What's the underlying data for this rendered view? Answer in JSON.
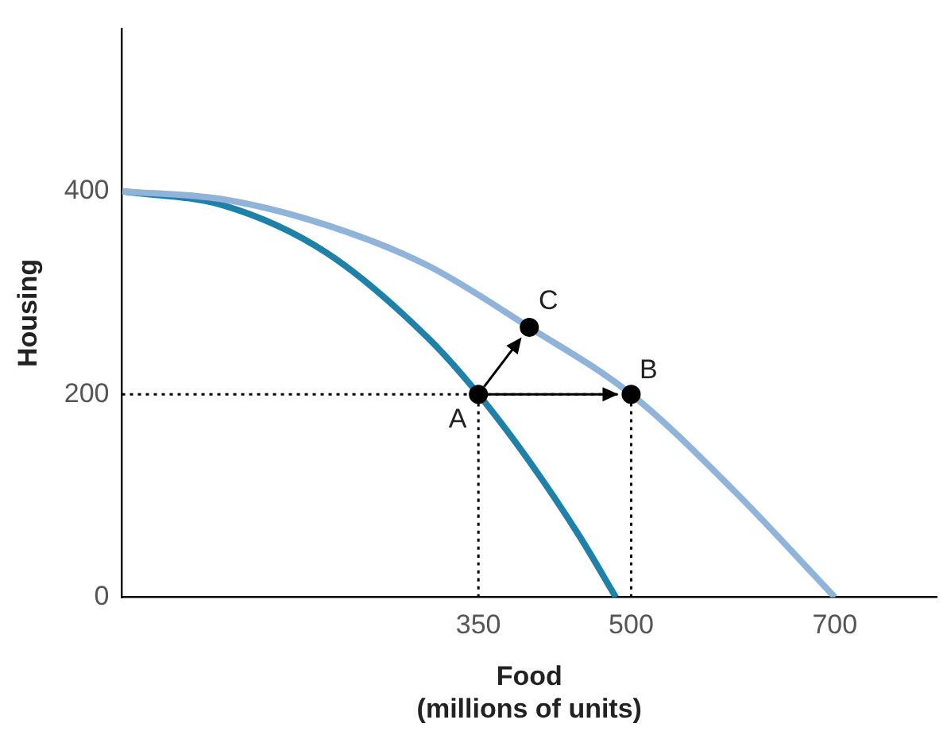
{
  "chart_data": {
    "type": "line",
    "xlabel": "Food\n(millions of units)",
    "ylabel": "Housing",
    "xlim": [
      0,
      800
    ],
    "ylim": [
      0,
      560
    ],
    "xticks": [
      350,
      500,
      700
    ],
    "yticks": [
      0,
      200,
      400
    ],
    "grid": false,
    "legend": false,
    "series": [
      {
        "type": "line",
        "color": "#8fb3d9",
        "marker": "none",
        "line_style": "solid",
        "x": [
          0,
          100,
          200,
          300,
          400,
          500,
          600,
          700
        ],
        "values": [
          400,
          392,
          367,
          327,
          266,
          200,
          106,
          0
        ]
      },
      {
        "type": "line",
        "color": "#1f80a8",
        "marker": "none",
        "line_style": "solid",
        "x": [
          0,
          100,
          200,
          300,
          350,
          400,
          450,
          485
        ],
        "values": [
          400,
          386,
          340,
          256,
          200,
          134,
          59,
          0
        ]
      },
      {
        "type": "line",
        "color": "#000000",
        "marker": "none",
        "line_style": "dotted",
        "x": [
          0,
          500
        ],
        "values": [
          200,
          200
        ]
      },
      {
        "type": "line",
        "color": "#000000",
        "marker": "none",
        "line_style": "dotted",
        "x": [
          350,
          350
        ],
        "values": [
          0,
          200
        ]
      },
      {
        "type": "line",
        "color": "#000000",
        "marker": "none",
        "line_style": "dotted",
        "x": [
          500,
          500
        ],
        "values": [
          0,
          200
        ]
      },
      {
        "type": "scatter",
        "color": "#000000",
        "marker": "circle",
        "x": [
          350,
          500,
          400
        ],
        "values": [
          200,
          200,
          266
        ]
      }
    ],
    "annotations": [
      {
        "text": "A",
        "x": 350,
        "y": 200
      },
      {
        "text": "B",
        "x": 500,
        "y": 200
      },
      {
        "text": "C",
        "x": 400,
        "y": 266
      }
    ]
  }
}
